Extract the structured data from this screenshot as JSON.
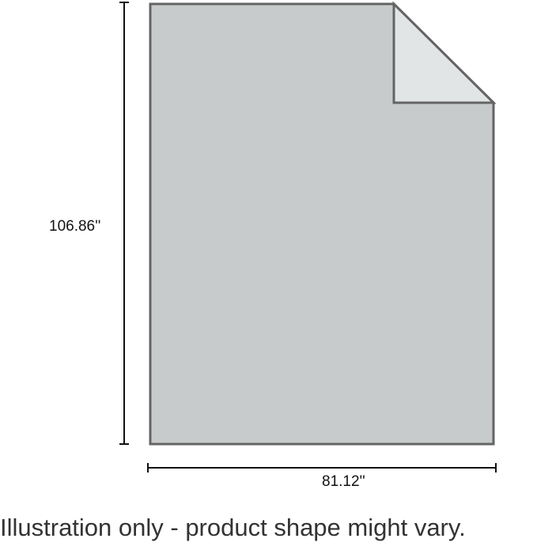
{
  "dimensions": {
    "height": "106.86''",
    "width": "81.12''"
  },
  "caption": "Illustration only - product shape might vary.",
  "colors": {
    "fill": "#c8cbcc",
    "fold": "#e2e5e6",
    "outline": "#646464"
  }
}
